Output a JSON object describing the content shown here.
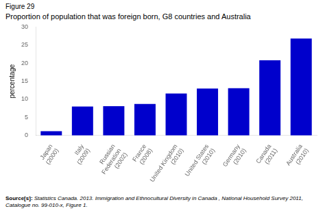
{
  "chart_data": {
    "type": "bar",
    "title": "Proportion of population that was foreign born, G8 countries and Australia",
    "ylabel": "percentage",
    "annotations": [
      "Figure 29",
      "Source[s]:",
      " Statistics Canada. 2013. ‪Immigration and Ethnocultural Diversity in Canada‬ , National Household Survey 2011, Catalogue no. 99-010-x, Figure 1."
    ],
    "categories": [
      "Japan\n(2000)",
      "Italy\n(2009)",
      "Russian\nFederation\n(2002)",
      "France\n(2008)",
      "United Kingdom\n(2010)",
      "United States\n(2010)",
      "Germany\n(2010)",
      "Canada\n(2011)",
      "Australia\n(2010)"
    ],
    "values": [
      1.2,
      8.0,
      8.1,
      8.7,
      11.6,
      13.0,
      13.1,
      20.8,
      26.8
    ],
    "color": "#0000cc",
    "ylim": [
      0,
      30
    ],
    "yticks": [
      0,
      5,
      10,
      15,
      20,
      25,
      30
    ],
    "grid": false
  }
}
